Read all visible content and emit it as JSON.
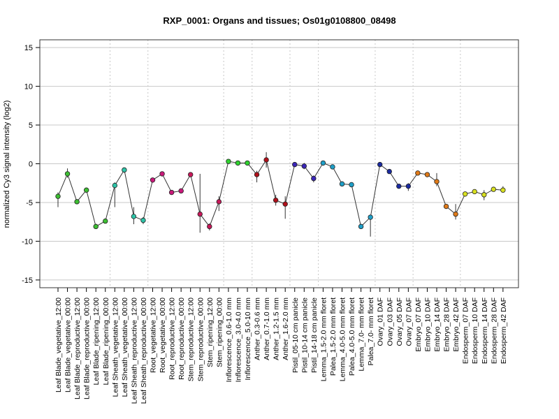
{
  "chart_data": {
    "type": "scatter",
    "title": "RXP_0001: Organs and tissues; Os01g0108800_08498",
    "xlabel": "",
    "ylabel": "normalized Cy3 signal intensity (log2)",
    "ylim": [
      -16,
      16
    ],
    "yticks": [
      -15,
      -10,
      -5,
      0,
      5,
      10,
      15
    ],
    "grid": true,
    "categories": [
      "Leaf Blade_vegetative_12:00",
      "Leaf Blade_vegetative_00:00",
      "Leaf Blade_reproductive_12:00",
      "Leaf Blade_reproductive_00:00",
      "Leaf Blade_ripening_12:00",
      "Leaf Blade_ripening_00:00",
      "Leaf Sheath_vegetative_12:00",
      "Leaf Sheath_vegetative_00:00",
      "Leaf Sheath_reproductive_12:00",
      "Leaf Sheath_reproductive_00:00",
      "Root_vegetative_12:00",
      "Root_vegetative_00:00",
      "Root_reproductive_12:00",
      "Root_reproductive_00:00",
      "Stem_reproductive_12:00",
      "Stem_reproductive_00:00",
      "Stem_ripening_12:00",
      "Stem_ripening_00:00",
      "Inflorescence_0.6-1.0 mm",
      "Inflorescence_3.0-4.0 mm",
      "Inflorescence_5.0-10 mm",
      "Anther_0.3-0.6 mm",
      "Anther_0.7-1.0 mm",
      "Anther_1.2-1.5 mm",
      "Anther_1.6-2.0 mm",
      "Pistil_05-10 cm panicle",
      "Pistil_10-14 cm panicle",
      "Pistil_14-18 cm panicle",
      "Lemma_1.5-2.0 mm floret",
      "Palea_1.5-2.0 mm floret",
      "Lemma_4.0-5.0 mm floret",
      "Palea_4.0-5.0 mm floret",
      "Lemma_7.0- mm floret",
      "Palea_7.0- mm floret",
      "Ovary_01 DAF",
      "Ovary_03 DAF",
      "Ovary_05 DAF",
      "Ovary_07 DAF",
      "Embryo_07 DAF",
      "Embryo_10 DAF",
      "Embryo_14 DAF",
      "Embryo_28 DAF",
      "Embryo_42 DAF",
      "Endosperm_07 DAF",
      "Endosperm_10 DAF",
      "Endosperm_14 DAF",
      "Endosperm_28 DAF",
      "Endosperm_42 DAF"
    ],
    "values": [
      -4.2,
      -1.3,
      -4.9,
      -3.4,
      -8.1,
      -7.4,
      -2.8,
      -0.8,
      -6.8,
      -7.3,
      -2.1,
      -1.3,
      -3.7,
      -3.5,
      -1.4,
      -6.5,
      -8.1,
      -4.9,
      0.3,
      0.1,
      0.1,
      -1.4,
      0.5,
      -4.7,
      -5.2,
      -0.1,
      -0.3,
      -1.9,
      0.1,
      -0.4,
      -2.6,
      -2.7,
      -8.1,
      -6.9,
      -0.1,
      -1.0,
      -2.9,
      -2.9,
      -1.2,
      -1.4,
      -2.3,
      -5.5,
      -6.5,
      -3.9,
      -3.6,
      -4.0,
      -3.3,
      -3.4
    ],
    "error_low": [
      -5.6,
      -1.8,
      -4.9,
      -3.4,
      -8.1,
      -7.4,
      -5.6,
      -1.0,
      -7.8,
      -7.8,
      -2.3,
      -1.3,
      -3.7,
      -3.5,
      -1.4,
      -8.9,
      -8.6,
      -6.1,
      0.2,
      0.1,
      -0.2,
      -2.4,
      -0.5,
      -5.4,
      -7.1,
      -0.1,
      -0.7,
      -2.4,
      0.1,
      -0.4,
      -2.6,
      -2.7,
      -8.3,
      -9.4,
      -0.1,
      -1.0,
      -2.9,
      -3.5,
      -1.2,
      -1.4,
      -2.9,
      -5.5,
      -7.2,
      -4.2,
      -3.6,
      -4.7,
      -3.3,
      -3.4
    ],
    "error_high": [
      -3.7,
      -0.6,
      -4.9,
      -3.4,
      -8.1,
      -7.4,
      -2.4,
      -0.6,
      -5.6,
      -6.9,
      -1.9,
      -1.3,
      -3.7,
      -3.5,
      -1.2,
      -1.3,
      -7.7,
      -4.2,
      0.4,
      0.1,
      0.3,
      -0.9,
      1.5,
      -4.0,
      -4.2,
      -0.1,
      0.1,
      -1.5,
      0.1,
      -0.4,
      -2.6,
      -2.7,
      -7.8,
      -6.7,
      -0.1,
      -1.0,
      -2.9,
      -2.5,
      -1.2,
      -1.4,
      -1.2,
      -5.5,
      -5.2,
      -3.6,
      -3.6,
      -3.4,
      -3.3,
      -2.9
    ],
    "point_colors": [
      "#3cbe32",
      "#3cbe32",
      "#3cbe32",
      "#3cbe32",
      "#3cbe32",
      "#3cbe32",
      "#2ec4a8",
      "#2ec4a8",
      "#2ec4a8",
      "#2ec4a8",
      "#c8197a",
      "#c8197a",
      "#c8197a",
      "#c8197a",
      "#c8195a",
      "#c8195a",
      "#c8195a",
      "#c8195a",
      "#2fd22f",
      "#2fd22f",
      "#2fd22f",
      "#b0101a",
      "#b0101a",
      "#b0101a",
      "#b0101a",
      "#3a26b8",
      "#3a26b8",
      "#3a26b8",
      "#1f9fc8",
      "#1f9fc8",
      "#1f9fc8",
      "#1f9fc8",
      "#1f9fc8",
      "#1f9fc8",
      "#1a2aa0",
      "#1a2aa0",
      "#1a2aa0",
      "#1a2aa0",
      "#e07a18",
      "#e07a18",
      "#e07a18",
      "#e07a18",
      "#e07a18",
      "#d8e020",
      "#d8e020",
      "#d8e020",
      "#d8e020",
      "#d8e020"
    ],
    "group_separators_after": [
      5,
      9,
      17,
      20,
      24,
      27,
      33,
      37,
      42
    ],
    "colors": {
      "line": "#333333",
      "grid": "#c8c8c8",
      "frame": "#333333"
    }
  }
}
